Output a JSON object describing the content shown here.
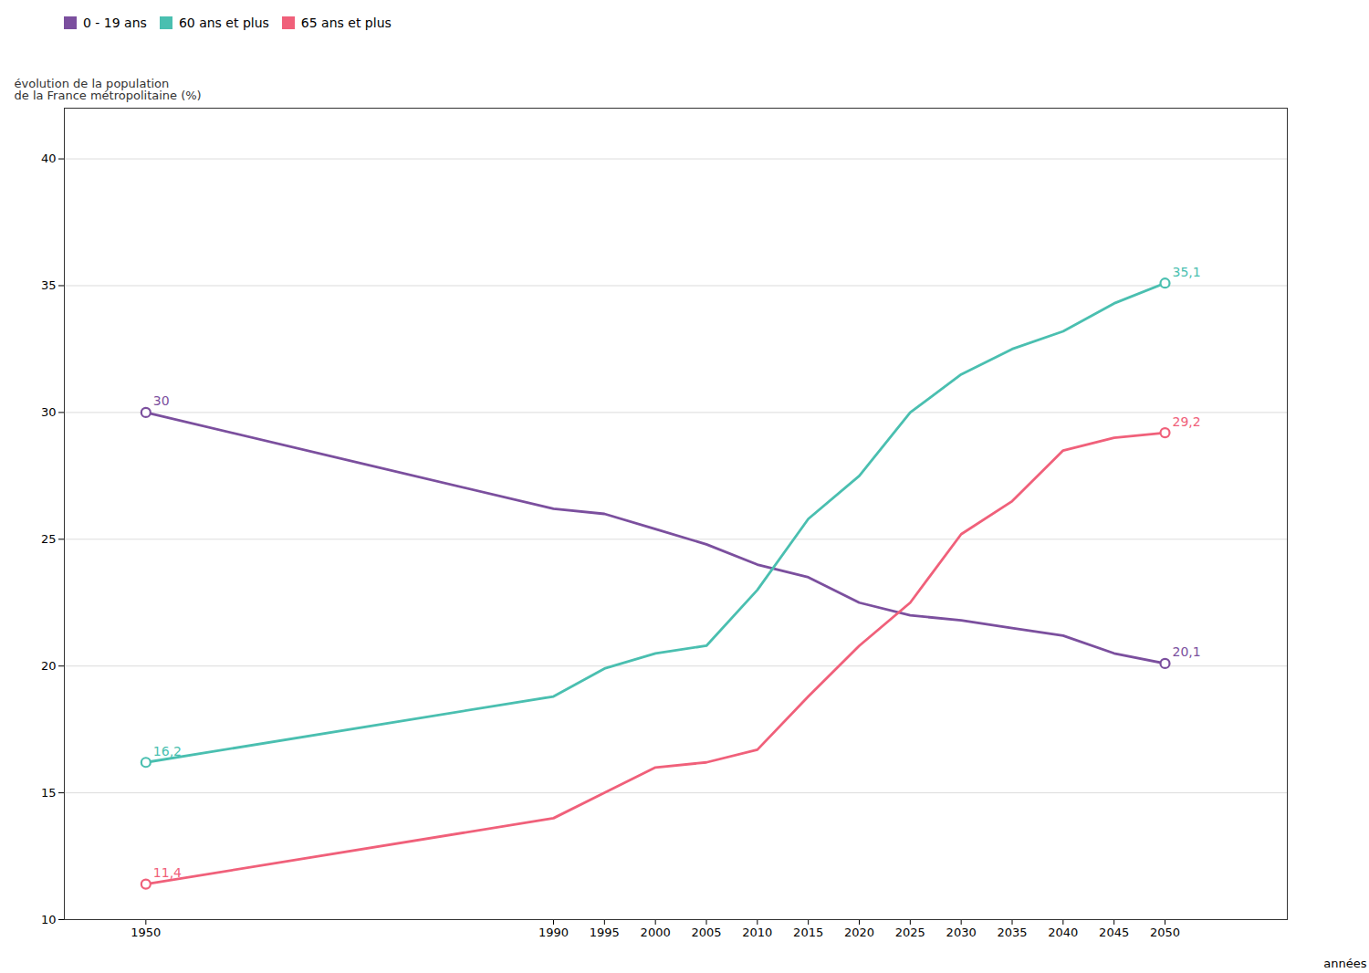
{
  "chart_data": {
    "type": "line",
    "xlabel": "années",
    "ylabel": "évolution de la population\nde la France métropolitaine (%)",
    "xlim": [
      1942,
      2062
    ],
    "xticks": [
      1950,
      1990,
      1995,
      2000,
      2005,
      2010,
      2015,
      2020,
      2025,
      2030,
      2035,
      2040,
      2045,
      2050
    ],
    "ylim": [
      10,
      42
    ],
    "yticks": [
      10,
      15,
      20,
      25,
      30,
      35,
      40
    ],
    "grid": true,
    "legend": "upper left",
    "x": [
      1950,
      1990,
      1995,
      2000,
      2005,
      2010,
      2015,
      2020,
      2025,
      2030,
      2035,
      2040,
      2045,
      2050
    ],
    "series": [
      {
        "name": "0 - 19 ans",
        "color": "#7B4F9E",
        "values": [
          30.0,
          26.2,
          26.0,
          25.4,
          24.8,
          24.0,
          23.5,
          22.5,
          22.0,
          21.8,
          21.5,
          21.2,
          20.5,
          20.1
        ],
        "value_labels": [
          "30",
          null,
          null,
          null,
          null,
          null,
          null,
          null,
          null,
          null,
          null,
          null,
          null,
          "20,1"
        ]
      },
      {
        "name": "60 ans et plus",
        "color": "#4ABFB0",
        "values": [
          16.2,
          18.8,
          19.9,
          20.5,
          20.8,
          23.0,
          25.8,
          27.5,
          30.0,
          31.5,
          32.5,
          33.2,
          34.3,
          35.1
        ],
        "value_labels": [
          "16,2",
          null,
          null,
          null,
          null,
          null,
          null,
          null,
          null,
          null,
          null,
          null,
          null,
          "35,1"
        ]
      },
      {
        "name": "65 ans et plus",
        "color": "#F0607A",
        "values": [
          11.4,
          14.0,
          15.0,
          16.0,
          16.2,
          16.7,
          18.8,
          20.8,
          22.5,
          25.2,
          26.5,
          28.5,
          29.0,
          29.2
        ],
        "value_labels": [
          "11,4",
          null,
          null,
          null,
          null,
          null,
          null,
          null,
          null,
          null,
          null,
          null,
          null,
          "29,2"
        ]
      }
    ]
  }
}
